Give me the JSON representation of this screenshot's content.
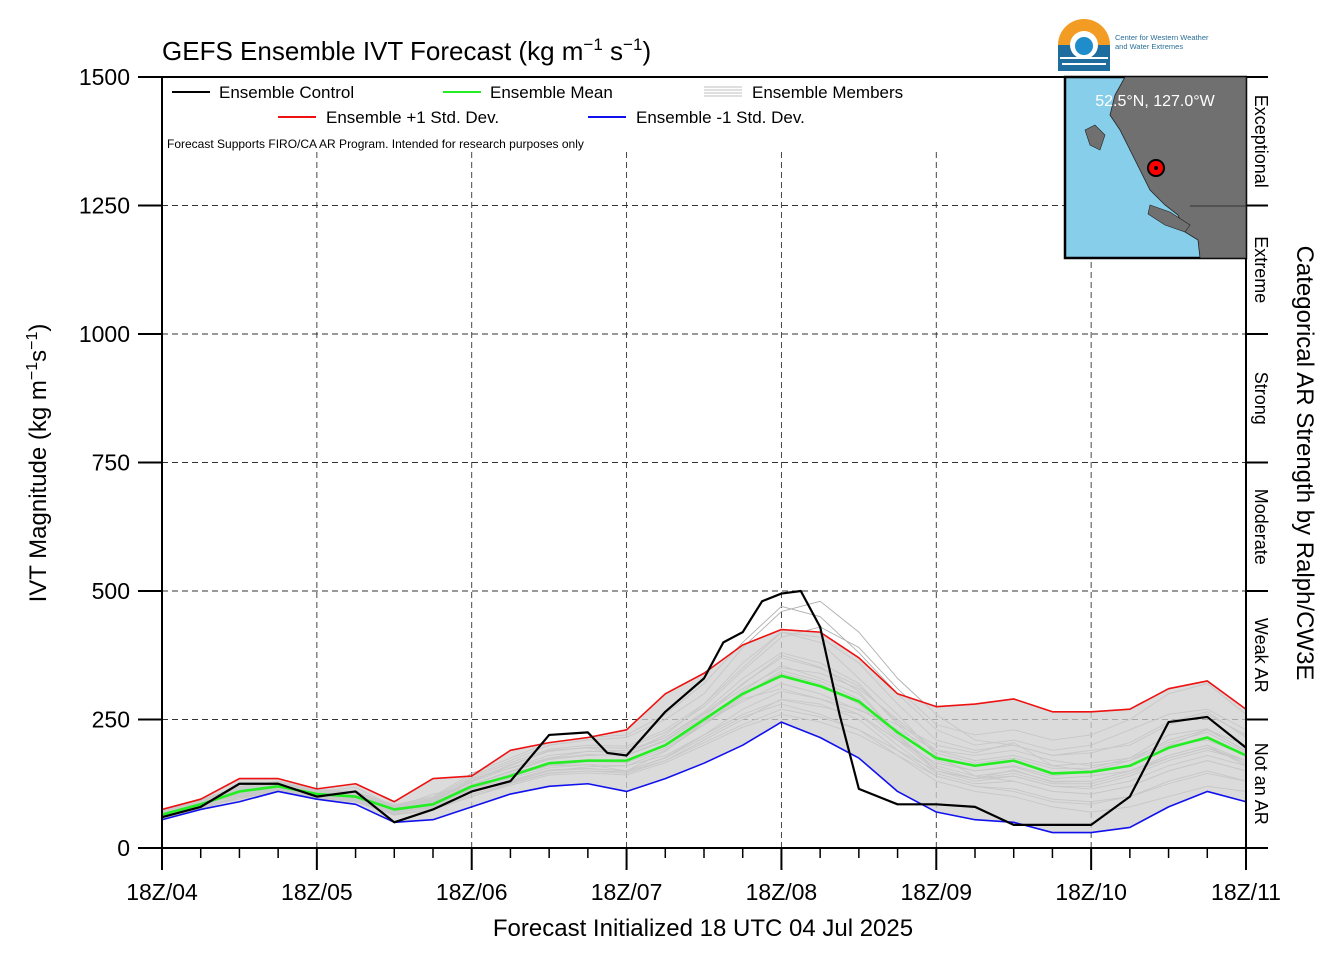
{
  "chart_data": {
    "type": "line",
    "title": "GEFS Ensemble IVT Forecast (kg m$^{-1}$ s$^{-1}$)",
    "title_parts": {
      "main": "GEFS Ensemble IVT Forecast (kg m",
      "exp1": "−1",
      "mid": " s",
      "exp2": "−1",
      "end": ")"
    },
    "ylabel_parts": {
      "main": "IVT Magnitude (kg m",
      "exp1": "−1",
      "mid": "s",
      "exp2": "−1",
      "end": ")"
    },
    "xlabel": "Forecast Initialized 18 UTC 04 Jul 2025",
    "right_label": "Categorical AR Strength by Ralph/CW3E",
    "note": "Forecast Supports FIRO/CA AR Program. Intended for research purposes only",
    "logo_text": [
      "Center for Western Weather",
      "and Water Extremes"
    ],
    "inset_label": "52.5°N, 127.0°W",
    "x_ticks": [
      "18Z/04",
      "18Z/05",
      "18Z/06",
      "18Z/07",
      "18Z/08",
      "18Z/09",
      "18Z/10",
      "18Z/11"
    ],
    "xlim": [
      0,
      168
    ],
    "ylim": [
      0,
      1500
    ],
    "y_ticks": [
      0,
      250,
      500,
      750,
      1000,
      1250,
      1500
    ],
    "grid": true,
    "categories_right": [
      {
        "label": "Not an AR",
        "range": [
          0,
          250
        ]
      },
      {
        "label": "Weak AR",
        "range": [
          250,
          500
        ]
      },
      {
        "label": "Moderate",
        "range": [
          500,
          750
        ]
      },
      {
        "label": "Strong",
        "range": [
          750,
          1000
        ]
      },
      {
        "label": "Extreme",
        "range": [
          1000,
          1250
        ]
      },
      {
        "label": "Exceptional",
        "range": [
          1250,
          1500
        ]
      }
    ],
    "legend": [
      {
        "label": "Ensemble Control",
        "color": "#000000"
      },
      {
        "label": "Ensemble Mean",
        "color": "#22ee22"
      },
      {
        "label": "Ensemble Members",
        "color": "#aaaaaa"
      },
      {
        "label": "Ensemble +1 Std. Dev.",
        "color": "#ee1111"
      },
      {
        "label": "Ensemble -1 Std. Dev.",
        "color": "#1111ee"
      }
    ],
    "x_hours": [
      0,
      6,
      12,
      18,
      24,
      30,
      36,
      42,
      48,
      54,
      60,
      66,
      72,
      78,
      84,
      90,
      96,
      102,
      108,
      114,
      120,
      126,
      132,
      138,
      144,
      150,
      156,
      162,
      168
    ],
    "series": [
      {
        "name": "Ensemble +1 Std. Dev.",
        "color": "#ee1111",
        "values": [
          75,
          95,
          135,
          135,
          115,
          125,
          90,
          135,
          140,
          190,
          205,
          215,
          230,
          300,
          340,
          395,
          425,
          420,
          370,
          300,
          275,
          280,
          290,
          265,
          265,
          270,
          310,
          325,
          270
        ]
      },
      {
        "name": "Ensemble Mean",
        "color": "#22ee22",
        "values": [
          65,
          85,
          110,
          120,
          105,
          100,
          75,
          85,
          120,
          140,
          165,
          170,
          170,
          200,
          250,
          300,
          335,
          315,
          285,
          225,
          175,
          160,
          170,
          145,
          148,
          160,
          195,
          215,
          180
        ]
      },
      {
        "name": "Ensemble -1 Std. Dev.",
        "color": "#1111ee",
        "values": [
          55,
          75,
          90,
          110,
          95,
          85,
          50,
          55,
          80,
          105,
          120,
          125,
          110,
          135,
          165,
          200,
          245,
          215,
          175,
          110,
          70,
          55,
          50,
          30,
          30,
          40,
          80,
          110,
          90
        ]
      },
      {
        "name": "Ensemble Control",
        "color": "#000000",
        "x": [
          0,
          6,
          12,
          18,
          24,
          30,
          36,
          42,
          48,
          54,
          60,
          66,
          69,
          72,
          78,
          84,
          87,
          90,
          93,
          96,
          99,
          102,
          105,
          108,
          114,
          120,
          126,
          132,
          138,
          144,
          150,
          156,
          162,
          168
        ],
        "values": [
          60,
          80,
          125,
          125,
          100,
          110,
          50,
          75,
          110,
          130,
          220,
          225,
          185,
          180,
          265,
          330,
          400,
          420,
          480,
          495,
          500,
          430,
          260,
          115,
          85,
          85,
          80,
          45,
          45,
          45,
          100,
          245,
          255,
          195
        ]
      }
    ],
    "members": [
      [
        62,
        82,
        98,
        115,
        100,
        112,
        72,
        88,
        135,
        155,
        175,
        188,
        190,
        215,
        262,
        318,
        375,
        352,
        305,
        220,
        150,
        135,
        152,
        128,
        130,
        150,
        175,
        195,
        170
      ],
      [
        58,
        78,
        120,
        128,
        108,
        102,
        78,
        105,
        118,
        142,
        160,
        162,
        150,
        188,
        245,
        285,
        320,
        300,
        268,
        240,
        200,
        185,
        205,
        160,
        165,
        175,
        220,
        232,
        188
      ],
      [
        70,
        92,
        112,
        122,
        96,
        96,
        70,
        78,
        110,
        128,
        150,
        158,
        160,
        180,
        220,
        260,
        288,
        275,
        260,
        210,
        165,
        150,
        158,
        135,
        140,
        150,
        180,
        200,
        160
      ],
      [
        66,
        85,
        104,
        118,
        110,
        118,
        80,
        92,
        130,
        160,
        190,
        195,
        185,
        220,
        280,
        360,
        420,
        400,
        330,
        260,
        180,
        140,
        130,
        110,
        105,
        120,
        150,
        170,
        150
      ],
      [
        60,
        80,
        95,
        112,
        100,
        90,
        65,
        75,
        100,
        125,
        145,
        150,
        145,
        170,
        210,
        250,
        290,
        280,
        250,
        190,
        140,
        120,
        110,
        90,
        85,
        100,
        130,
        150,
        130
      ],
      [
        72,
        94,
        116,
        126,
        112,
        108,
        82,
        98,
        140,
        170,
        200,
        210,
        215,
        250,
        300,
        390,
        460,
        480,
        420,
        330,
        260,
        210,
        200,
        180,
        190,
        200,
        240,
        260,
        220
      ],
      [
        64,
        84,
        108,
        120,
        104,
        98,
        74,
        84,
        115,
        140,
        160,
        168,
        170,
        200,
        240,
        290,
        310,
        290,
        270,
        230,
        190,
        180,
        190,
        170,
        160,
        170,
        200,
        230,
        200
      ],
      [
        56,
        76,
        100,
        114,
        98,
        94,
        68,
        80,
        110,
        132,
        152,
        155,
        150,
        175,
        215,
        255,
        280,
        260,
        230,
        180,
        130,
        110,
        100,
        80,
        70,
        80,
        100,
        120,
        110
      ],
      [
        68,
        88,
        112,
        124,
        106,
        100,
        76,
        88,
        122,
        148,
        172,
        180,
        182,
        210,
        260,
        310,
        350,
        340,
        310,
        250,
        190,
        170,
        180,
        160,
        150,
        170,
        210,
        230,
        190
      ],
      [
        60,
        82,
        104,
        116,
        102,
        96,
        72,
        82,
        114,
        136,
        156,
        162,
        160,
        190,
        240,
        300,
        340,
        320,
        280,
        210,
        150,
        130,
        140,
        120,
        120,
        140,
        170,
        190,
        170
      ],
      [
        74,
        96,
        118,
        130,
        114,
        110,
        84,
        100,
        145,
        175,
        205,
        215,
        220,
        260,
        320,
        400,
        470,
        450,
        380,
        300,
        230,
        200,
        210,
        190,
        200,
        230,
        260,
        270,
        230
      ],
      [
        58,
        78,
        98,
        112,
        98,
        92,
        66,
        76,
        104,
        126,
        146,
        150,
        148,
        170,
        205,
        240,
        270,
        255,
        230,
        190,
        150,
        135,
        140,
        120,
        115,
        130,
        160,
        180,
        160
      ],
      [
        66,
        86,
        110,
        122,
        108,
        104,
        78,
        90,
        128,
        156,
        180,
        188,
        186,
        215,
        265,
        330,
        380,
        360,
        320,
        240,
        170,
        150,
        160,
        140,
        150,
        170,
        200,
        210,
        180
      ],
      [
        62,
        82,
        106,
        118,
        104,
        100,
        74,
        86,
        118,
        144,
        166,
        172,
        170,
        198,
        245,
        305,
        355,
        330,
        300,
        220,
        160,
        140,
        150,
        130,
        130,
        150,
        180,
        200,
        170
      ],
      [
        70,
        90,
        114,
        124,
        110,
        106,
        80,
        94,
        132,
        162,
        188,
        196,
        194,
        225,
        275,
        345,
        410,
        430,
        390,
        310,
        240,
        220,
        230,
        210,
        220,
        250,
        300,
        320,
        260
      ],
      [
        64,
        84,
        102,
        116,
        100,
        96,
        70,
        80,
        108,
        130,
        150,
        154,
        150,
        176,
        220,
        270,
        305,
        290,
        260,
        200,
        145,
        125,
        130,
        110,
        105,
        120,
        150,
        170,
        150
      ],
      [
        60,
        80,
        100,
        114,
        102,
        98,
        72,
        84,
        116,
        140,
        162,
        168,
        166,
        194,
        240,
        295,
        345,
        325,
        290,
        215,
        155,
        135,
        145,
        125,
        125,
        145,
        175,
        195,
        165
      ],
      [
        68,
        88,
        110,
        122,
        106,
        102,
        76,
        88,
        124,
        150,
        174,
        182,
        180,
        208,
        255,
        320,
        370,
        350,
        315,
        245,
        185,
        165,
        175,
        155,
        155,
        175,
        205,
        225,
        185
      ],
      [
        72,
        92,
        116,
        128,
        112,
        108,
        80,
        96,
        136,
        166,
        192,
        200,
        198,
        230,
        280,
        350,
        420,
        410,
        360,
        280,
        210,
        190,
        200,
        180,
        185,
        205,
        245,
        265,
        215
      ],
      [
        56,
        76,
        98,
        110,
        96,
        90,
        64,
        74,
        100,
        122,
        142,
        146,
        142,
        166,
        200,
        235,
        260,
        245,
        220,
        180,
        140,
        120,
        115,
        95,
        90,
        100,
        125,
        145,
        130
      ]
    ]
  }
}
